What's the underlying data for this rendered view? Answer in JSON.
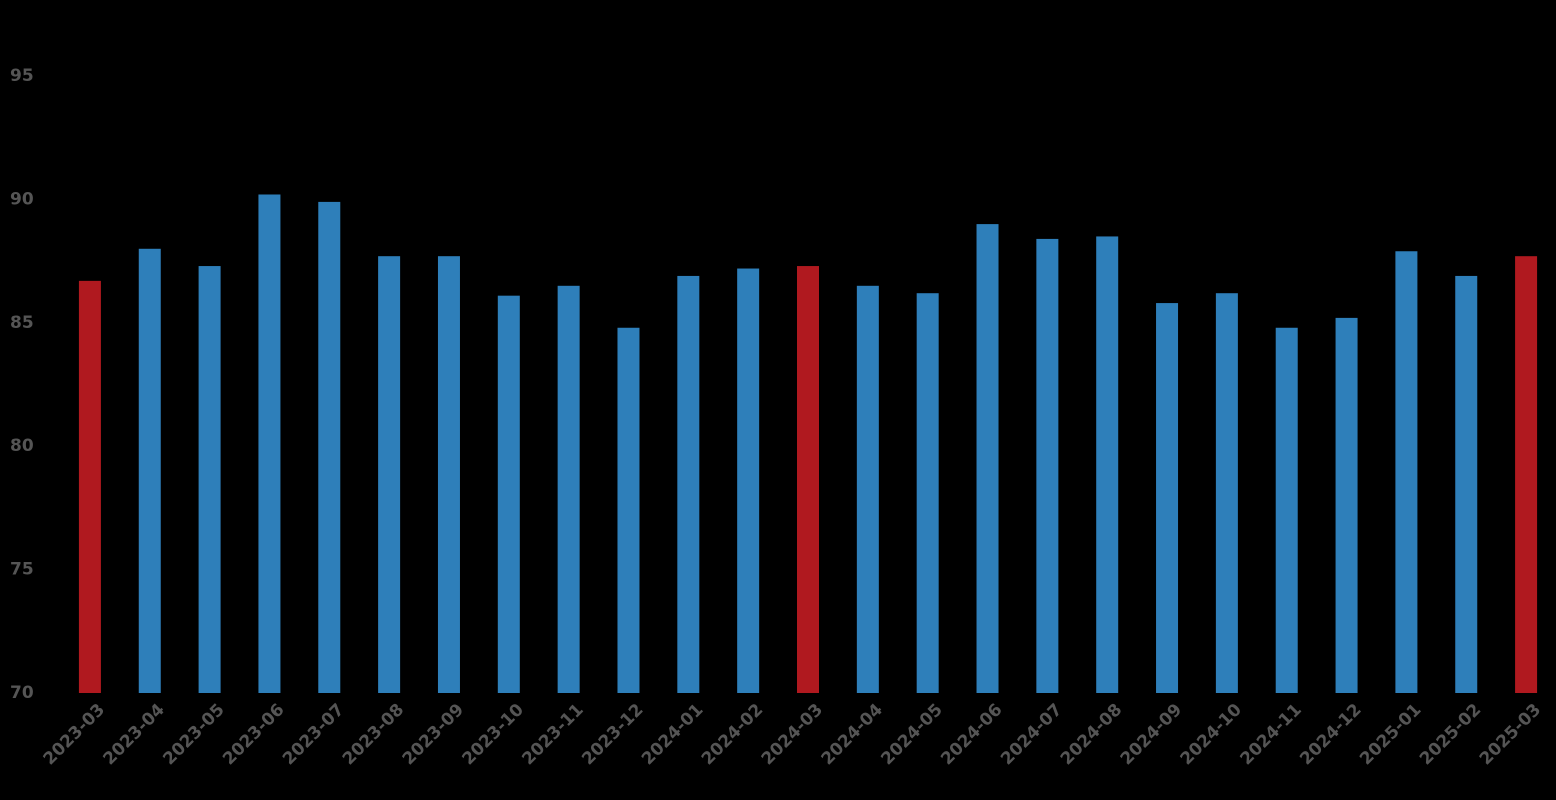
{
  "chart_data": {
    "type": "bar",
    "categories": [
      "2023-03",
      "2023-04",
      "2023-05",
      "2023-06",
      "2023-07",
      "2023-08",
      "2023-09",
      "2023-10",
      "2023-11",
      "2023-12",
      "2024-01",
      "2024-02",
      "2024-03",
      "2024-04",
      "2024-05",
      "2024-06",
      "2024-07",
      "2024-08",
      "2024-09",
      "2024-10",
      "2024-11",
      "2024-12",
      "2025-01",
      "2025-02",
      "2025-03"
    ],
    "values": [
      86.7,
      88.0,
      87.3,
      90.2,
      89.9,
      87.7,
      87.7,
      86.1,
      86.5,
      84.8,
      86.9,
      87.2,
      87.3,
      86.5,
      86.2,
      89.0,
      88.4,
      88.5,
      85.8,
      86.2,
      84.8,
      85.2,
      87.9,
      86.9,
      87.7
    ],
    "colors": [
      "#b0191f",
      "#2e7fba",
      "#2e7fba",
      "#2e7fba",
      "#2e7fba",
      "#2e7fba",
      "#2e7fba",
      "#2e7fba",
      "#2e7fba",
      "#2e7fba",
      "#2e7fba",
      "#2e7fba",
      "#b0191f",
      "#2e7fba",
      "#2e7fba",
      "#2e7fba",
      "#2e7fba",
      "#2e7fba",
      "#2e7fba",
      "#2e7fba",
      "#2e7fba",
      "#2e7fba",
      "#2e7fba",
      "#2e7fba",
      "#b0191f"
    ],
    "ylim": [
      70,
      98
    ],
    "yticks": [
      70,
      75,
      80,
      85,
      90,
      95
    ],
    "grid": false
  }
}
